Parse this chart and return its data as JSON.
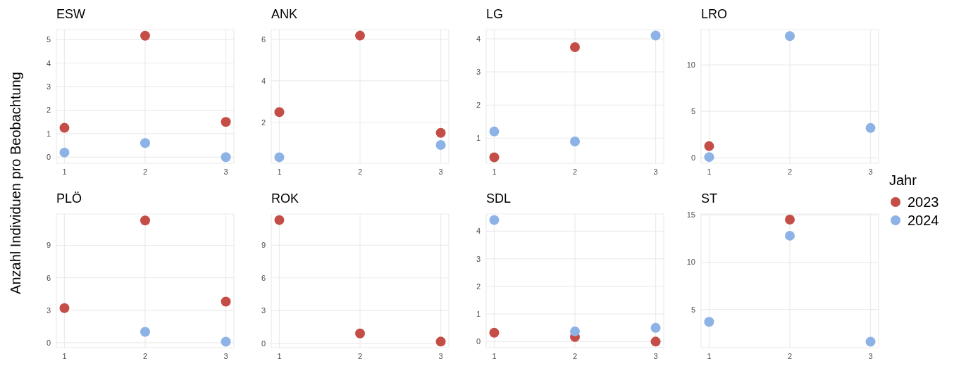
{
  "chart_data": [
    {
      "type": "scatter",
      "title": "ESW",
      "ylabel": "Anzahl Individuen pro Beobachtung",
      "legend_title": "Jahr",
      "x": [
        1,
        2,
        3
      ],
      "xlim": [
        0.9,
        3.1
      ],
      "xticks": [
        1,
        2,
        3
      ],
      "ylim": [
        -0.26,
        5.43
      ],
      "yticks": [
        0,
        1,
        2,
        3,
        4,
        5
      ],
      "grid": true,
      "marker": "circle",
      "legend": "right",
      "series": [
        {
          "name": "2023",
          "color": "#c44e47",
          "values": [
            1.25,
            5.17,
            1.5
          ]
        },
        {
          "name": "2024",
          "color": "#8cb2e6",
          "values": [
            0.2,
            0.6,
            0.0
          ]
        }
      ]
    },
    {
      "type": "scatter",
      "title": "ANK",
      "x": [
        1,
        2,
        3
      ],
      "xlim": [
        0.9,
        3.1
      ],
      "xticks": [
        1,
        2,
        3
      ],
      "ylim": [
        0.04,
        6.46
      ],
      "yticks": [
        2,
        4,
        6
      ],
      "grid": true,
      "marker": "circle",
      "series": [
        {
          "name": "2023",
          "color": "#c44e47",
          "values": [
            2.5,
            6.17,
            1.5
          ]
        },
        {
          "name": "2024",
          "color": "#8cb2e6",
          "values": [
            0.33,
            null,
            0.92
          ]
        }
      ]
    },
    {
      "type": "scatter",
      "title": "LG",
      "x": [
        1,
        2,
        3
      ],
      "xlim": [
        0.9,
        3.1
      ],
      "xticks": [
        1,
        2,
        3
      ],
      "ylim": [
        0.24,
        4.28
      ],
      "yticks": [
        1,
        2,
        3,
        4
      ],
      "grid": true,
      "marker": "circle",
      "series": [
        {
          "name": "2023",
          "color": "#c44e47",
          "values": [
            0.42,
            3.75,
            null
          ]
        },
        {
          "name": "2024",
          "color": "#8cb2e6",
          "values": [
            1.2,
            0.9,
            4.1
          ]
        }
      ]
    },
    {
      "type": "scatter",
      "title": "LRO",
      "x": [
        1,
        2,
        3
      ],
      "xlim": [
        0.9,
        3.1
      ],
      "xticks": [
        1,
        2,
        3
      ],
      "ylim": [
        -0.6,
        13.8
      ],
      "yticks": [
        0,
        5,
        10
      ],
      "grid": true,
      "marker": "circle",
      "series": [
        {
          "name": "2023",
          "color": "#c44e47",
          "values": [
            1.25,
            null,
            null
          ]
        },
        {
          "name": "2024",
          "color": "#8cb2e6",
          "values": [
            0.07,
            13.1,
            3.2
          ]
        }
      ]
    },
    {
      "type": "scatter",
      "title": "PLÖ",
      "x": [
        1,
        2,
        3
      ],
      "xlim": [
        0.9,
        3.1
      ],
      "xticks": [
        1,
        2,
        3
      ],
      "ylim": [
        -0.46,
        11.9
      ],
      "yticks": [
        0,
        3,
        6,
        9
      ],
      "grid": true,
      "marker": "circle",
      "series": [
        {
          "name": "2023",
          "color": "#c44e47",
          "values": [
            3.2,
            11.3,
            3.8
          ]
        },
        {
          "name": "2024",
          "color": "#8cb2e6",
          "values": [
            null,
            1.0,
            0.1
          ]
        }
      ]
    },
    {
      "type": "scatter",
      "title": "ROK",
      "x": [
        1,
        2,
        3
      ],
      "xlim": [
        0.9,
        3.1
      ],
      "xticks": [
        1,
        2,
        3
      ],
      "ylim": [
        -0.41,
        11.86
      ],
      "yticks": [
        0,
        3,
        6,
        9
      ],
      "grid": true,
      "marker": "circle",
      "series": [
        {
          "name": "2023",
          "color": "#c44e47",
          "values": [
            11.3,
            0.9,
            0.15
          ]
        }
      ]
    },
    {
      "type": "scatter",
      "title": "SDL",
      "x": [
        1,
        2,
        3
      ],
      "xlim": [
        0.9,
        3.1
      ],
      "xticks": [
        1,
        2,
        3
      ],
      "ylim": [
        -0.22,
        4.62
      ],
      "yticks": [
        0,
        1,
        2,
        3,
        4
      ],
      "grid": true,
      "marker": "circle",
      "series": [
        {
          "name": "2023",
          "color": "#c44e47",
          "values": [
            0.32,
            0.17,
            0.0
          ]
        },
        {
          "name": "2024",
          "color": "#8cb2e6",
          "values": [
            4.4,
            0.37,
            0.5
          ]
        }
      ]
    },
    {
      "type": "scatter",
      "title": "ST",
      "x": [
        1,
        2,
        3
      ],
      "xlim": [
        0.9,
        3.1
      ],
      "xticks": [
        1,
        2,
        3
      ],
      "ylim": [
        0.96,
        15.1
      ],
      "yticks": [
        5,
        10,
        15
      ],
      "grid": true,
      "marker": "circle",
      "series": [
        {
          "name": "2023",
          "color": "#c44e47",
          "values": [
            null,
            14.5,
            null
          ]
        },
        {
          "name": "2024",
          "color": "#8cb2e6",
          "values": [
            3.7,
            12.8,
            1.6
          ]
        }
      ]
    }
  ]
}
